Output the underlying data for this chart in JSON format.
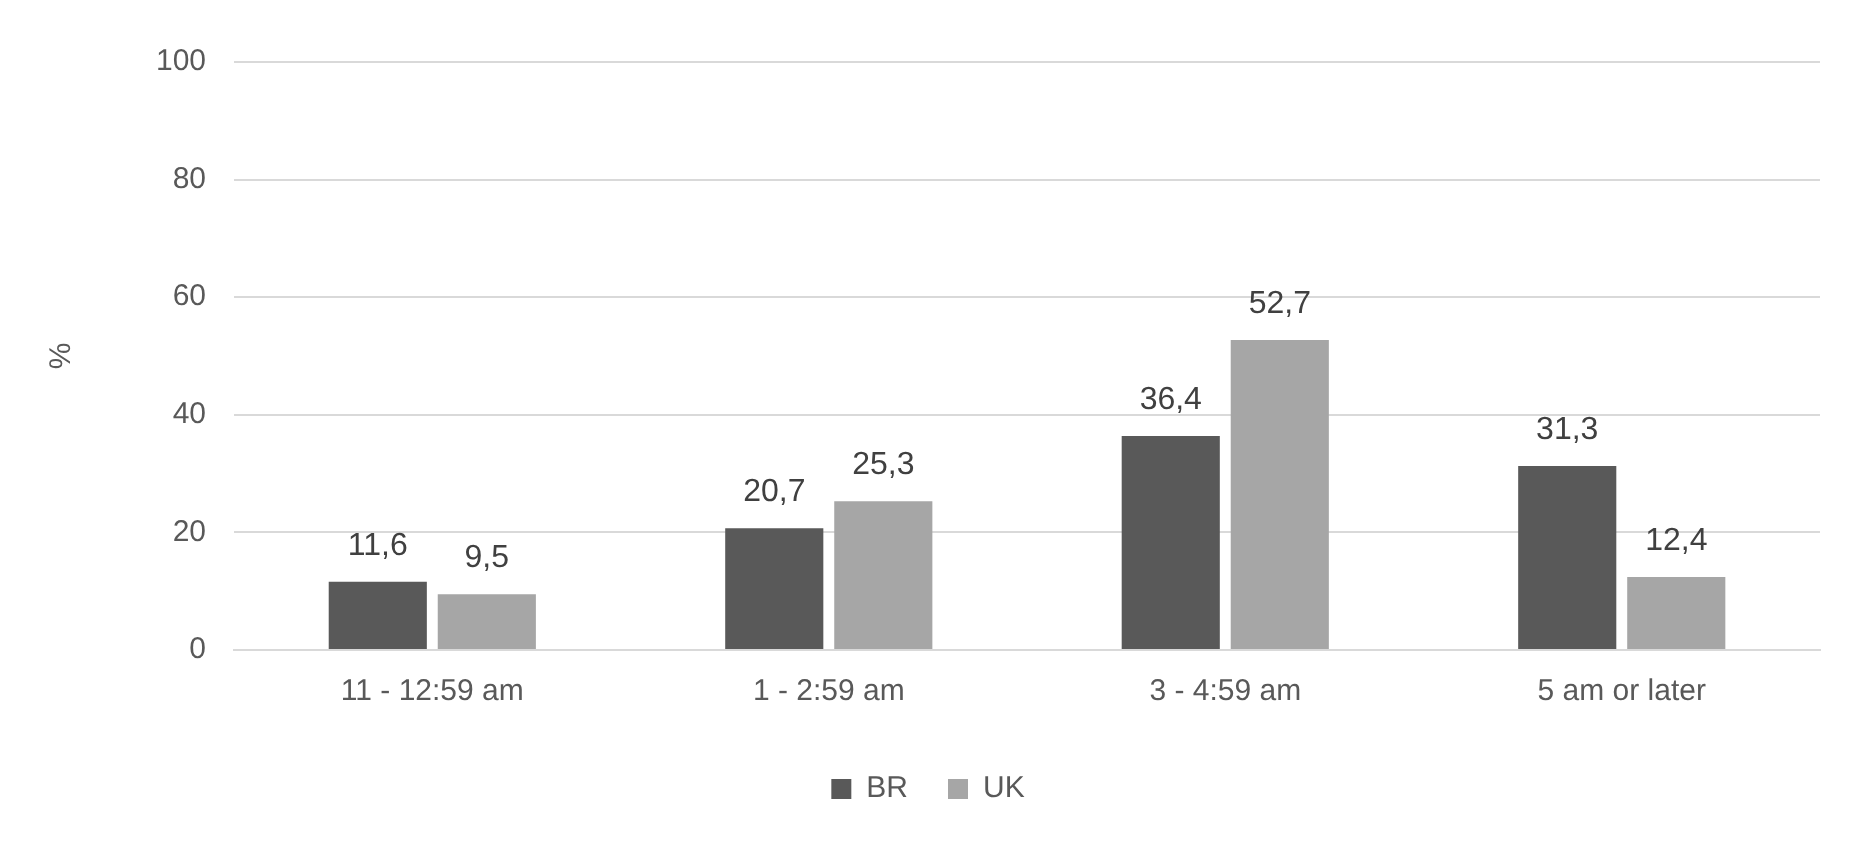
{
  "chart_data": {
    "type": "bar",
    "ylabel": "%",
    "categories": [
      "11 - 12:59 am",
      "1 - 2:59 am",
      "3 - 4:59 am",
      "5 am or later"
    ],
    "series": [
      {
        "name": "BR",
        "color": "#595959",
        "values": [
          11.6,
          20.7,
          36.4,
          31.3
        ],
        "value_labels": [
          "11,6",
          "20,7",
          "36,4",
          "31,3"
        ]
      },
      {
        "name": "UK",
        "color": "#a6a6a6",
        "values": [
          9.5,
          25.3,
          52.7,
          12.4
        ],
        "value_labels": [
          "9,5",
          "25,3",
          "52,7",
          "12,4"
        ]
      }
    ],
    "ylim": [
      0,
      100
    ],
    "yticks": [
      0,
      20,
      40,
      60,
      80,
      100
    ],
    "grid": "y",
    "legend": "bottom"
  }
}
